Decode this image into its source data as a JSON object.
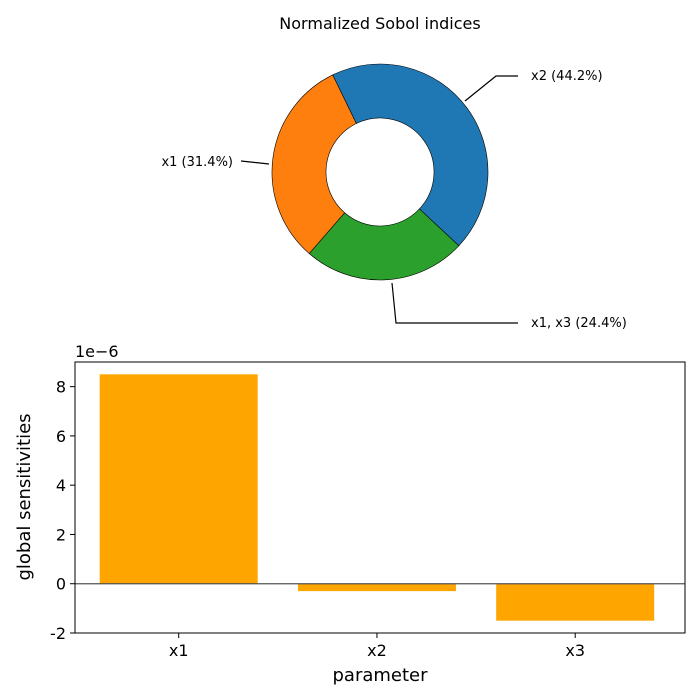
{
  "chart_data": [
    {
      "type": "pie",
      "title": "Normalized Sobol indices",
      "donut": true,
      "slices": [
        {
          "label": "x2  (44.2%)",
          "value": 44.2,
          "color": "#1f77b4"
        },
        {
          "label": "x1,  x3  (24.4%)",
          "value": 24.4,
          "color": "#2ca02c"
        },
        {
          "label": "x1  (31.4%)",
          "value": 31.4,
          "color": "#ff7f0e"
        }
      ]
    },
    {
      "type": "bar",
      "categories": [
        "x1",
        "x2",
        "x3"
      ],
      "values": [
        8.5e-06,
        -3e-07,
        -1.5e-06
      ],
      "color": "#ffa500",
      "xlabel": "parameter",
      "ylabel": "global sensitivities",
      "ylim": [
        -2e-06,
        9e-06
      ],
      "yticks": [
        "-2",
        "0",
        "2",
        "4",
        "6",
        "8"
      ],
      "ytick_values": [
        -2e-06,
        0,
        2e-06,
        4e-06,
        6e-06,
        8e-06
      ],
      "offset_label": "1e−6",
      "zero_line": true
    }
  ]
}
